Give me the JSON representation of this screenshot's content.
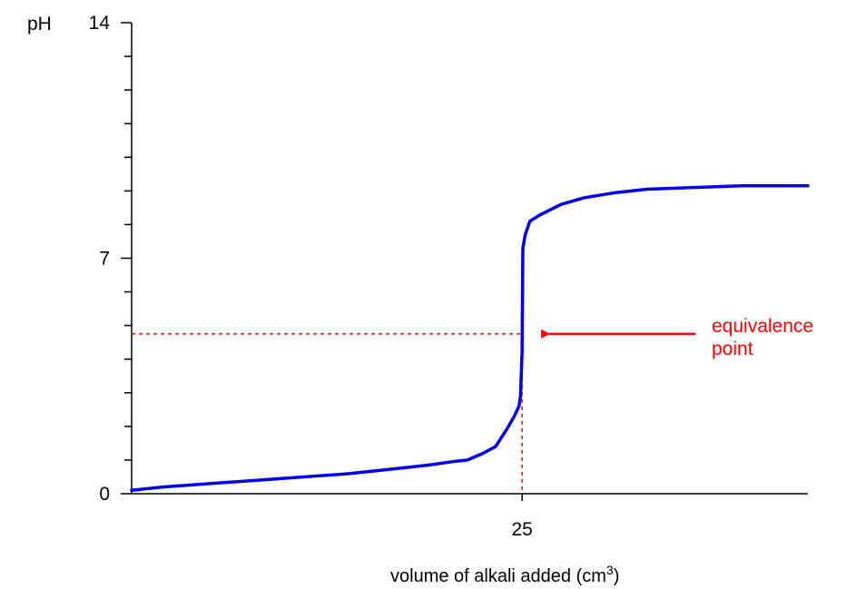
{
  "chart_data": {
    "type": "line",
    "title": "",
    "ylabel": "pH",
    "xlabel": "volume of alkali added (cm",
    "xlabel_superscript": "3",
    "xlabel_suffix": ")",
    "ylim": [
      0,
      14
    ],
    "xlim": [
      0,
      43.3
    ],
    "y_tick_labels": [
      {
        "value": 0,
        "label": "0"
      },
      {
        "value": 7,
        "label": "7"
      },
      {
        "value": 14,
        "label": "14"
      }
    ],
    "y_minor_tick_values": [
      1,
      2,
      3,
      4,
      5,
      6,
      8,
      9,
      10,
      11,
      12,
      13
    ],
    "x_tick_labels": [
      {
        "value": 25,
        "label": "25"
      }
    ],
    "grid": false,
    "series": [
      {
        "color": "#0000ee",
        "x": [
          0,
          2,
          5,
          8,
          11,
          14,
          17,
          19,
          20.5,
          21.5,
          22.5,
          23.3,
          24,
          24.5,
          24.8,
          24.9,
          25.0,
          25.05,
          25.2,
          25.5,
          26.2,
          27.5,
          29,
          31,
          33,
          36,
          39,
          40,
          41,
          42,
          43.3
        ],
        "y": [
          0.1,
          0.2,
          0.3,
          0.4,
          0.5,
          0.6,
          0.75,
          0.85,
          0.95,
          1.0,
          1.2,
          1.4,
          1.9,
          2.3,
          2.6,
          2.9,
          4.2,
          7.3,
          7.7,
          8.1,
          8.3,
          8.6,
          8.8,
          8.95,
          9.05,
          9.1,
          9.15,
          9.15,
          9.15,
          9.15,
          9.15
        ]
      }
    ],
    "reference_lines": {
      "x": 25,
      "y": 4.75,
      "color": "#ff0000",
      "style": "dashed"
    },
    "annotation": {
      "line1": "equivalence",
      "line2": "point",
      "color": "#ff0000",
      "points_to": {
        "x": 25,
        "y": 4.75
      }
    }
  }
}
